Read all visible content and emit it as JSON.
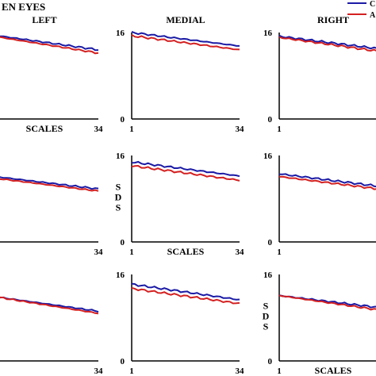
{
  "header": {
    "title": "EN EYES"
  },
  "legend": [
    {
      "label": "C",
      "color": "#1a1aa6"
    },
    {
      "label": "A",
      "color": "#d42020"
    }
  ],
  "colors": {
    "series_1": "#1a1aa6",
    "series_2": "#d42020"
  },
  "axis_titles": {
    "x": "SCALES",
    "y": "S D S"
  },
  "column_titles": [
    "LEFT",
    "MEDIAL",
    "RIGHT"
  ],
  "chart_data": [
    {
      "type": "line",
      "panel": "row1-left",
      "title": "LEFT",
      "xlabel": "SCALES",
      "ylabel": "",
      "x_tick_labels": [
        "34"
      ],
      "y_tick_labels": [],
      "xlim": [
        1,
        34
      ],
      "ylim": [
        0,
        16
      ],
      "series": [
        {
          "color": "#1a1aa6",
          "x": [
            1,
            34
          ],
          "y": [
            15.6,
            12.8
          ]
        },
        {
          "color": "#d42020",
          "x": [
            1,
            34
          ],
          "y": [
            15.4,
            12.2
          ]
        }
      ]
    },
    {
      "type": "line",
      "panel": "row1-medial",
      "title": "MEDIAL",
      "xlabel": "",
      "ylabel": "",
      "x_tick_labels": [
        "1",
        "34"
      ],
      "y_tick_labels": [
        "16",
        "0"
      ],
      "xlim": [
        1,
        34
      ],
      "ylim": [
        0,
        16
      ],
      "series": [
        {
          "color": "#1a1aa6",
          "x": [
            1,
            34
          ],
          "y": [
            16.0,
            13.5
          ]
        },
        {
          "color": "#d42020",
          "x": [
            1,
            34
          ],
          "y": [
            15.4,
            12.8
          ]
        }
      ]
    },
    {
      "type": "line",
      "panel": "row1-right",
      "title": "RIGHT",
      "xlabel": "",
      "ylabel": "",
      "x_tick_labels": [
        "1"
      ],
      "y_tick_labels": [
        "16",
        "0"
      ],
      "xlim": [
        1,
        34
      ],
      "ylim": [
        0,
        16
      ],
      "series": [
        {
          "color": "#1a1aa6",
          "x": [
            1,
            34
          ],
          "y": [
            15.3,
            12.8
          ]
        },
        {
          "color": "#d42020",
          "x": [
            1,
            34
          ],
          "y": [
            15.1,
            12.3
          ]
        }
      ]
    },
    {
      "type": "line",
      "panel": "row2-left",
      "title": "",
      "xlabel": "",
      "ylabel": "",
      "x_tick_labels": [
        "34"
      ],
      "y_tick_labels": [],
      "xlim": [
        1,
        34
      ],
      "ylim": [
        0,
        16
      ],
      "series": [
        {
          "color": "#1a1aa6",
          "x": [
            1,
            34
          ],
          "y": [
            12.2,
            9.8
          ]
        },
        {
          "color": "#d42020",
          "x": [
            1,
            34
          ],
          "y": [
            11.9,
            9.4
          ]
        }
      ]
    },
    {
      "type": "line",
      "panel": "row2-medial",
      "title": "",
      "xlabel": "SCALES",
      "ylabel": "S D S",
      "x_tick_labels": [
        "1",
        "34"
      ],
      "y_tick_labels": [
        "16",
        "0"
      ],
      "xlim": [
        1,
        34
      ],
      "ylim": [
        0,
        16
      ],
      "series": [
        {
          "color": "#1a1aa6",
          "x": [
            1,
            34
          ],
          "y": [
            14.8,
            12.2
          ]
        },
        {
          "color": "#d42020",
          "x": [
            1,
            34
          ],
          "y": [
            14.1,
            11.4
          ]
        }
      ]
    },
    {
      "type": "line",
      "panel": "row2-right",
      "title": "",
      "xlabel": "",
      "ylabel": "",
      "x_tick_labels": [
        "1"
      ],
      "y_tick_labels": [
        "16",
        "0"
      ],
      "xlim": [
        1,
        34
      ],
      "ylim": [
        0,
        16
      ],
      "series": [
        {
          "color": "#1a1aa6",
          "x": [
            1,
            34
          ],
          "y": [
            12.6,
            10.1
          ]
        },
        {
          "color": "#d42020",
          "x": [
            1,
            34
          ],
          "y": [
            12.1,
            9.6
          ]
        }
      ]
    },
    {
      "type": "line",
      "panel": "row3-left",
      "title": "",
      "xlabel": "",
      "ylabel": "",
      "x_tick_labels": [
        "34"
      ],
      "y_tick_labels": [],
      "xlim": [
        1,
        34
      ],
      "ylim": [
        0,
        16
      ],
      "series": [
        {
          "color": "#1a1aa6",
          "x": [
            1,
            34
          ],
          "y": [
            12.0,
            9.2
          ]
        },
        {
          "color": "#d42020",
          "x": [
            1,
            34
          ],
          "y": [
            12.0,
            8.8
          ]
        }
      ]
    },
    {
      "type": "line",
      "panel": "row3-medial",
      "title": "",
      "xlabel": "",
      "ylabel": "",
      "x_tick_labels": [
        "1",
        "34"
      ],
      "y_tick_labels": [
        "16",
        "0"
      ],
      "xlim": [
        1,
        34
      ],
      "ylim": [
        0,
        16
      ],
      "series": [
        {
          "color": "#1a1aa6",
          "x": [
            1,
            34
          ],
          "y": [
            14.2,
            11.3
          ]
        },
        {
          "color": "#d42020",
          "x": [
            1,
            34
          ],
          "y": [
            13.4,
            10.6
          ]
        }
      ]
    },
    {
      "type": "line",
      "panel": "row3-right",
      "title": "",
      "xlabel": "SCALES",
      "ylabel": "S D S",
      "x_tick_labels": [
        "1"
      ],
      "y_tick_labels": [
        "16",
        "0"
      ],
      "xlim": [
        1,
        34
      ],
      "ylim": [
        0,
        16
      ],
      "series": [
        {
          "color": "#1a1aa6",
          "x": [
            1,
            34
          ],
          "y": [
            12.1,
            9.7
          ]
        },
        {
          "color": "#d42020",
          "x": [
            1,
            34
          ],
          "y": [
            12.1,
            9.2
          ]
        }
      ]
    }
  ]
}
